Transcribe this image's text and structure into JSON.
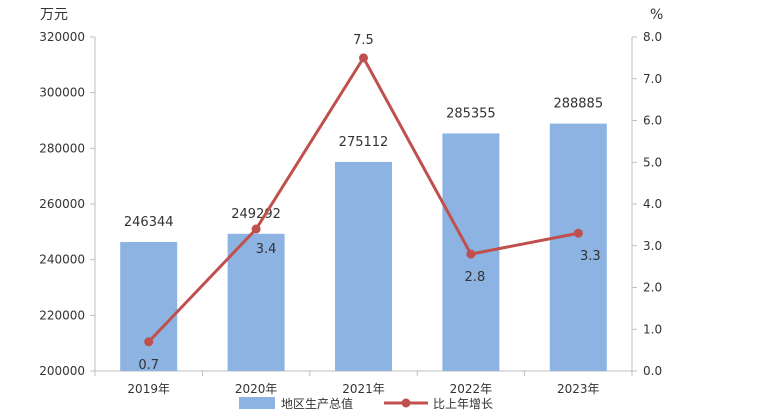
{
  "chart_data": {
    "type": "bar",
    "categories": [
      "2019年",
      "2020年",
      "2021年",
      "2022年",
      "2023年"
    ],
    "series": [
      {
        "name": "地区生产总值",
        "type": "bar",
        "axis": "left",
        "values": [
          246344,
          249292,
          275112,
          285355,
          288885
        ],
        "labels": [
          "246344",
          "249292",
          "275112",
          "285355",
          "288885"
        ],
        "color": "#8db3e2"
      },
      {
        "name": "比上年增长",
        "type": "line",
        "axis": "right",
        "values": [
          0.7,
          3.4,
          7.5,
          2.8,
          3.3
        ],
        "labels": [
          "0.7",
          "3.4",
          "7.5",
          "2.8",
          "3.3"
        ],
        "color": "#c0504d"
      }
    ],
    "yleft": {
      "unit": "万元",
      "min": 200000,
      "max": 320000,
      "ticks": [
        200000,
        220000,
        240000,
        260000,
        280000,
        300000,
        320000
      ],
      "tick_labels": [
        "200000",
        "220000",
        "240000",
        "260000",
        "280000",
        "300000",
        "320000"
      ]
    },
    "yright": {
      "unit": "%",
      "min": 0,
      "max": 8,
      "ticks": [
        0,
        1,
        2,
        3,
        4,
        5,
        6,
        7,
        8
      ],
      "tick_labels": [
        "0.0",
        "1.0",
        "2.0",
        "3.0",
        "4.0",
        "5.0",
        "6.0",
        "7.0",
        "8.0"
      ]
    },
    "grid": false,
    "legend": "bottom"
  }
}
